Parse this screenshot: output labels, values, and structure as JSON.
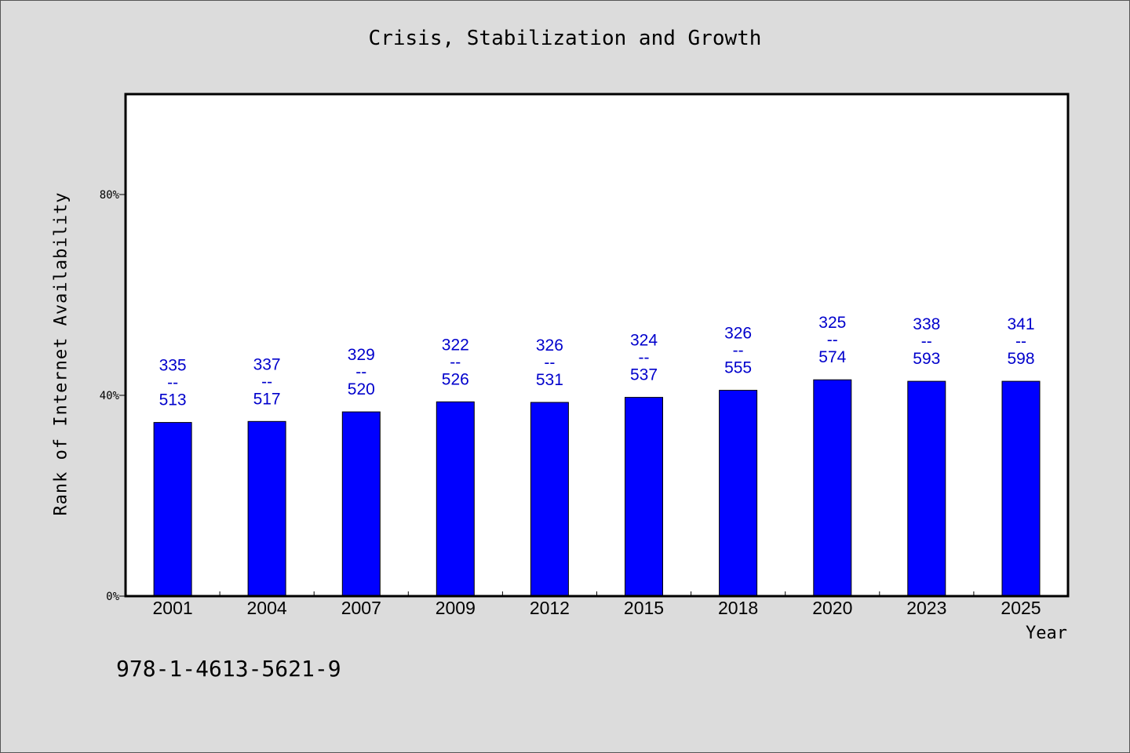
{
  "chart_data": {
    "type": "bar",
    "title": "Crisis, Stabilization and Growth",
    "xlabel": "Year",
    "ylabel": "Rank of Internet Availability",
    "categories": [
      "2001",
      "2004",
      "2007",
      "2009",
      "2012",
      "2015",
      "2018",
      "2020",
      "2023",
      "2025"
    ],
    "values": [
      34.6,
      34.8,
      36.7,
      38.7,
      38.6,
      39.6,
      41.0,
      43.1,
      42.8,
      42.8
    ],
    "value_unit": "%",
    "data_labels": [
      {
        "rank": "335",
        "sep": "--",
        "total": "513"
      },
      {
        "rank": "337",
        "sep": "--",
        "total": "517"
      },
      {
        "rank": "329",
        "sep": "--",
        "total": "520"
      },
      {
        "rank": "322",
        "sep": "--",
        "total": "526"
      },
      {
        "rank": "326",
        "sep": "--",
        "total": "531"
      },
      {
        "rank": "324",
        "sep": "--",
        "total": "537"
      },
      {
        "rank": "326",
        "sep": "--",
        "total": "555"
      },
      {
        "rank": "325",
        "sep": "--",
        "total": "574"
      },
      {
        "rank": "338",
        "sep": "--",
        "total": "593"
      },
      {
        "rank": "341",
        "sep": "--",
        "total": "598"
      }
    ],
    "yticks": [
      {
        "value": 0,
        "label": "0%"
      },
      {
        "value": 40,
        "label": "40%"
      },
      {
        "value": 80,
        "label": "80%"
      }
    ],
    "ylim": [
      0,
      100
    ],
    "grid": false,
    "legend": "none",
    "colors": {
      "bar": "#0000ff",
      "label": "#0000cc",
      "background": "#dcdcdc",
      "plot_background": "#ffffff"
    }
  },
  "footer_text": "978-1-4613-5621-9"
}
